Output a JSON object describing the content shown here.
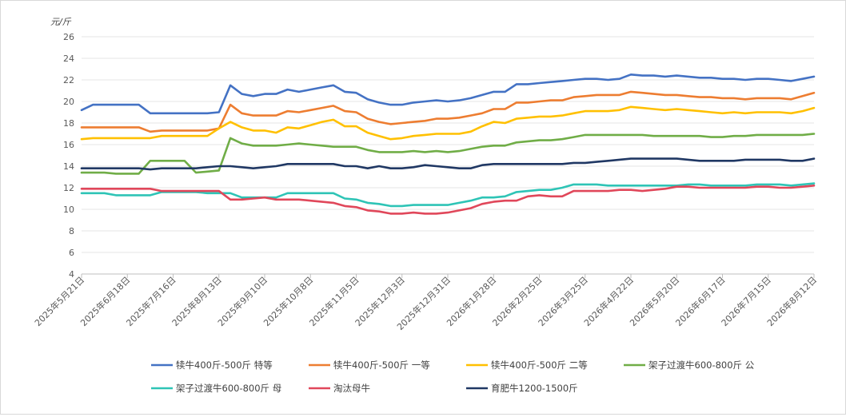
{
  "chart_data": {
    "type": "line",
    "ylabel": "元/斤",
    "ylim": [
      4,
      26
    ],
    "yticks": [
      4,
      6,
      8,
      10,
      12,
      14,
      16,
      18,
      20,
      22,
      24,
      26
    ],
    "grid": "horizontal",
    "legend_position": "bottom",
    "x_tick_labels": [
      "2025年5月21日",
      "2025年6月18日",
      "2025年7月16日",
      "2025年8月13日",
      "2025年9月10日",
      "2025年10月8日",
      "2025年11月5日",
      "2025年12月3日",
      "2025年12月31日",
      "2026年1月28日",
      "2026年2月25日",
      "2026年3月25日",
      "2026年4月22日",
      "2026年5月20日",
      "2026年6月17日",
      "2026年7月15日",
      "2026年8月12日"
    ],
    "weeks": 65,
    "series": [
      {
        "name": "犊牛400斤-500斤 特等",
        "color": "#4472c4",
        "values": [
          19.2,
          19.7,
          19.7,
          19.7,
          19.7,
          19.7,
          18.9,
          18.9,
          18.9,
          18.9,
          18.9,
          18.9,
          19.0,
          21.5,
          20.7,
          20.5,
          20.7,
          20.7,
          21.1,
          20.9,
          21.1,
          21.3,
          21.5,
          20.9,
          20.8,
          20.2,
          19.9,
          19.7,
          19.7,
          19.9,
          20.0,
          20.1,
          20.0,
          20.1,
          20.3,
          20.6,
          20.9,
          20.9,
          21.6,
          21.6,
          21.7,
          21.8,
          21.9,
          22.0,
          22.1,
          22.1,
          22.0,
          22.1,
          22.5,
          22.4,
          22.4,
          22.3,
          22.4,
          22.3,
          22.2,
          22.2,
          22.1,
          22.1,
          22.0,
          22.1,
          22.1,
          22.0,
          21.9,
          22.1,
          22.3
        ]
      },
      {
        "name": "犊牛400斤-500斤 一等",
        "color": "#ed7d31",
        "values": [
          17.6,
          17.6,
          17.6,
          17.6,
          17.6,
          17.6,
          17.2,
          17.3,
          17.3,
          17.3,
          17.3,
          17.3,
          17.5,
          19.7,
          18.9,
          18.7,
          18.7,
          18.7,
          19.1,
          19.0,
          19.2,
          19.4,
          19.6,
          19.1,
          19.0,
          18.4,
          18.1,
          17.9,
          18.0,
          18.1,
          18.2,
          18.4,
          18.4,
          18.5,
          18.7,
          18.9,
          19.3,
          19.3,
          19.9,
          19.9,
          20.0,
          20.1,
          20.1,
          20.4,
          20.5,
          20.6,
          20.6,
          20.6,
          20.9,
          20.8,
          20.7,
          20.6,
          20.6,
          20.5,
          20.4,
          20.4,
          20.3,
          20.3,
          20.2,
          20.3,
          20.3,
          20.3,
          20.2,
          20.5,
          20.8
        ]
      },
      {
        "name": "犊牛400斤-500斤 二等",
        "color": "#ffc000",
        "values": [
          16.5,
          16.6,
          16.6,
          16.6,
          16.6,
          16.6,
          16.6,
          16.8,
          16.8,
          16.8,
          16.8,
          16.8,
          17.5,
          18.1,
          17.6,
          17.3,
          17.3,
          17.1,
          17.6,
          17.5,
          17.8,
          18.1,
          18.3,
          17.7,
          17.7,
          17.1,
          16.8,
          16.5,
          16.6,
          16.8,
          16.9,
          17.0,
          17.0,
          17.0,
          17.2,
          17.7,
          18.1,
          18.0,
          18.4,
          18.5,
          18.6,
          18.6,
          18.7,
          18.9,
          19.1,
          19.1,
          19.1,
          19.2,
          19.5,
          19.4,
          19.3,
          19.2,
          19.3,
          19.2,
          19.1,
          19.0,
          18.9,
          19.0,
          18.9,
          19.0,
          19.0,
          19.0,
          18.9,
          19.1,
          19.4
        ]
      },
      {
        "name": "架子过渡牛600-800斤 公",
        "color": "#70ad47",
        "values": [
          13.4,
          13.4,
          13.4,
          13.3,
          13.3,
          13.3,
          14.5,
          14.5,
          14.5,
          14.5,
          13.4,
          13.5,
          13.6,
          16.6,
          16.1,
          15.9,
          15.9,
          15.9,
          16.0,
          16.1,
          16.0,
          15.9,
          15.8,
          15.8,
          15.8,
          15.5,
          15.3,
          15.3,
          15.3,
          15.4,
          15.3,
          15.4,
          15.3,
          15.4,
          15.6,
          15.8,
          15.9,
          15.9,
          16.2,
          16.3,
          16.4,
          16.4,
          16.5,
          16.7,
          16.9,
          16.9,
          16.9,
          16.9,
          16.9,
          16.9,
          16.8,
          16.8,
          16.8,
          16.8,
          16.8,
          16.7,
          16.7,
          16.8,
          16.8,
          16.9,
          16.9,
          16.9,
          16.9,
          16.9,
          17.0
        ]
      },
      {
        "name": "架子过渡牛600-800斤 母",
        "color": "#2ec4b6",
        "values": [
          11.5,
          11.5,
          11.5,
          11.3,
          11.3,
          11.3,
          11.3,
          11.6,
          11.6,
          11.6,
          11.6,
          11.5,
          11.5,
          11.5,
          11.1,
          11.1,
          11.1,
          11.1,
          11.5,
          11.5,
          11.5,
          11.5,
          11.5,
          11.0,
          10.9,
          10.6,
          10.5,
          10.3,
          10.3,
          10.4,
          10.4,
          10.4,
          10.4,
          10.6,
          10.8,
          11.1,
          11.1,
          11.2,
          11.6,
          11.7,
          11.8,
          11.8,
          12.0,
          12.3,
          12.3,
          12.3,
          12.2,
          12.2,
          12.2,
          12.2,
          12.2,
          12.2,
          12.2,
          12.3,
          12.3,
          12.2,
          12.2,
          12.2,
          12.2,
          12.3,
          12.3,
          12.3,
          12.2,
          12.3,
          12.4
        ]
      },
      {
        "name": "淘汰母牛",
        "color": "#e0475a",
        "values": [
          11.9,
          11.9,
          11.9,
          11.9,
          11.9,
          11.9,
          11.9,
          11.7,
          11.7,
          11.7,
          11.7,
          11.7,
          11.7,
          10.9,
          10.9,
          11.0,
          11.1,
          10.9,
          10.9,
          10.9,
          10.8,
          10.7,
          10.6,
          10.3,
          10.2,
          9.9,
          9.8,
          9.6,
          9.6,
          9.7,
          9.6,
          9.6,
          9.7,
          9.9,
          10.1,
          10.5,
          10.7,
          10.8,
          10.8,
          11.2,
          11.3,
          11.2,
          11.2,
          11.7,
          11.7,
          11.7,
          11.7,
          11.8,
          11.8,
          11.7,
          11.8,
          11.9,
          12.1,
          12.1,
          12.0,
          12.0,
          12.0,
          12.0,
          12.0,
          12.1,
          12.1,
          12.0,
          12.0,
          12.1,
          12.2
        ]
      },
      {
        "name": "育肥牛1200-1500斤",
        "color": "#203864",
        "values": [
          13.8,
          13.8,
          13.8,
          13.8,
          13.8,
          13.8,
          13.7,
          13.8,
          13.8,
          13.8,
          13.8,
          13.9,
          14.0,
          14.0,
          13.9,
          13.8,
          13.9,
          14.0,
          14.2,
          14.2,
          14.2,
          14.2,
          14.2,
          14.0,
          14.0,
          13.8,
          14.0,
          13.8,
          13.8,
          13.9,
          14.1,
          14.0,
          13.9,
          13.8,
          13.8,
          14.1,
          14.2,
          14.2,
          14.2,
          14.2,
          14.2,
          14.2,
          14.2,
          14.3,
          14.3,
          14.4,
          14.5,
          14.6,
          14.7,
          14.7,
          14.7,
          14.7,
          14.7,
          14.6,
          14.5,
          14.5,
          14.5,
          14.5,
          14.6,
          14.6,
          14.6,
          14.6,
          14.5,
          14.5,
          14.7
        ]
      }
    ]
  }
}
